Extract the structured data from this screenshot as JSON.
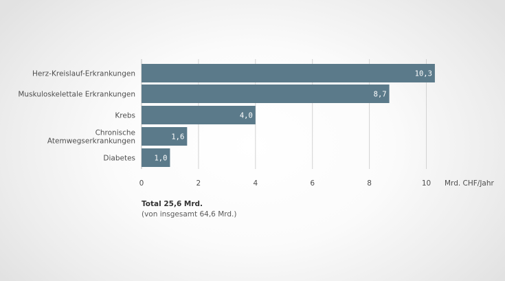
{
  "chart_data": {
    "type": "bar",
    "orientation": "horizontal",
    "categories": [
      [
        "Herz-Kreislauf-Erkrankungen"
      ],
      [
        "Muskuloskelettale Erkrankungen"
      ],
      [
        "Krebs"
      ],
      [
        "Chronische",
        "Atemwegserkrankungen"
      ],
      [
        "Diabetes"
      ]
    ],
    "values": [
      10.3,
      8.7,
      4.0,
      1.6,
      1.0
    ],
    "value_labels": [
      "10,3",
      "8,7",
      "4,0",
      "1,6",
      "1,0"
    ],
    "x_ticks": [
      0,
      2,
      4,
      6,
      8,
      10
    ],
    "x_tick_labels": [
      "0",
      "2",
      "4",
      "6",
      "8",
      "10"
    ],
    "xlim": [
      0,
      10.6
    ],
    "xlabel": "Mrd. CHF/Jahr",
    "grid": true,
    "bar_color": "#5b7a8a",
    "grid_color": "#d2d2d2"
  },
  "notes": {
    "total": "Total 25,6 Mrd.",
    "sub": "(von insgesamt 64,6 Mrd.)"
  }
}
